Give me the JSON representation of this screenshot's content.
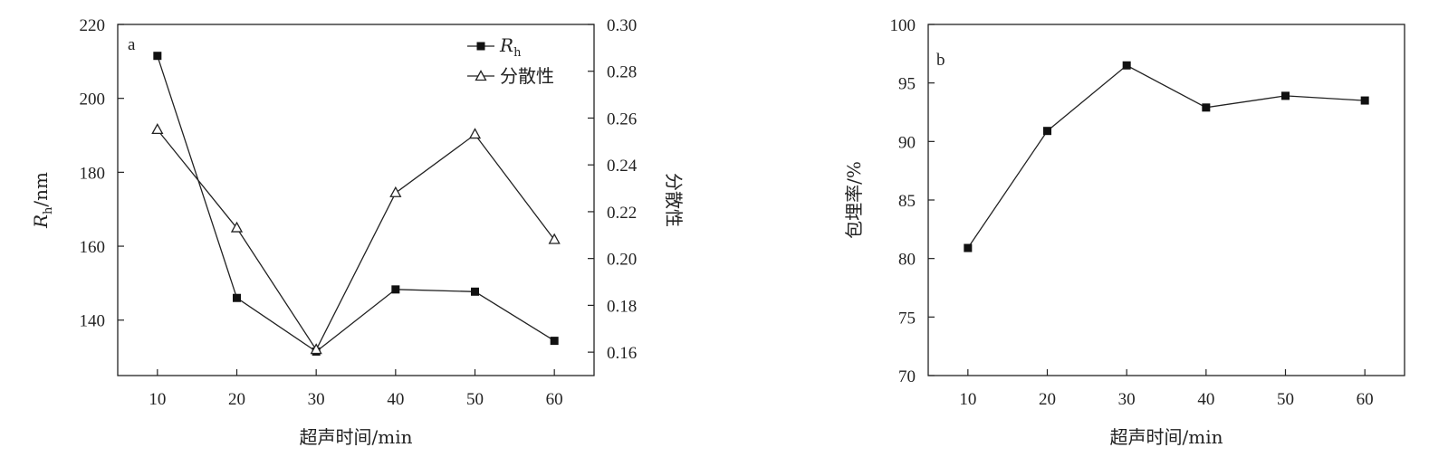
{
  "chart_data": [
    {
      "panel": "a",
      "type": "line",
      "x": [
        10,
        20,
        30,
        40,
        50,
        60
      ],
      "xlabel": "超声时间/min",
      "xlim": [
        5,
        65
      ],
      "xticks": [
        10,
        20,
        30,
        40,
        50,
        60
      ],
      "ylabel_main": "R",
      "ylabel_sub": "h",
      "ylabel_unit": "/nm",
      "ylim": [
        125,
        220
      ],
      "yticks": [
        140,
        160,
        180,
        200,
        220
      ],
      "y2label": "分散性",
      "y2lim": [
        0.15,
        0.3
      ],
      "y2ticks": [
        "0.16",
        "0.18",
        "0.20",
        "0.22",
        "0.24",
        "0.26",
        "0.28",
        "0.30"
      ],
      "series": [
        {
          "name": "R",
          "name_sub": "h",
          "axis": "left",
          "marker": "filled-square",
          "values": [
            211.5,
            146,
            131.5,
            148.3,
            147.7,
            134.4
          ]
        },
        {
          "name": "分散性",
          "axis": "right",
          "marker": "open-triangle",
          "values": [
            0.255,
            0.213,
            0.161,
            0.228,
            0.253,
            0.208
          ]
        }
      ],
      "legend_position": "top-right",
      "grid": false
    },
    {
      "panel": "b",
      "type": "line",
      "x": [
        10,
        20,
        30,
        40,
        50,
        60
      ],
      "xlabel": "超声时间/min",
      "xlim": [
        5,
        65
      ],
      "xticks": [
        10,
        20,
        30,
        40,
        50,
        60
      ],
      "ylabel": "包埋率/%",
      "ylim": [
        70,
        100
      ],
      "yticks": [
        70,
        75,
        80,
        85,
        90,
        95,
        100
      ],
      "series": [
        {
          "axis": "left",
          "marker": "filled-square",
          "values": [
            80.9,
            90.9,
            96.5,
            92.9,
            93.9,
            93.5
          ]
        }
      ],
      "grid": false
    }
  ]
}
